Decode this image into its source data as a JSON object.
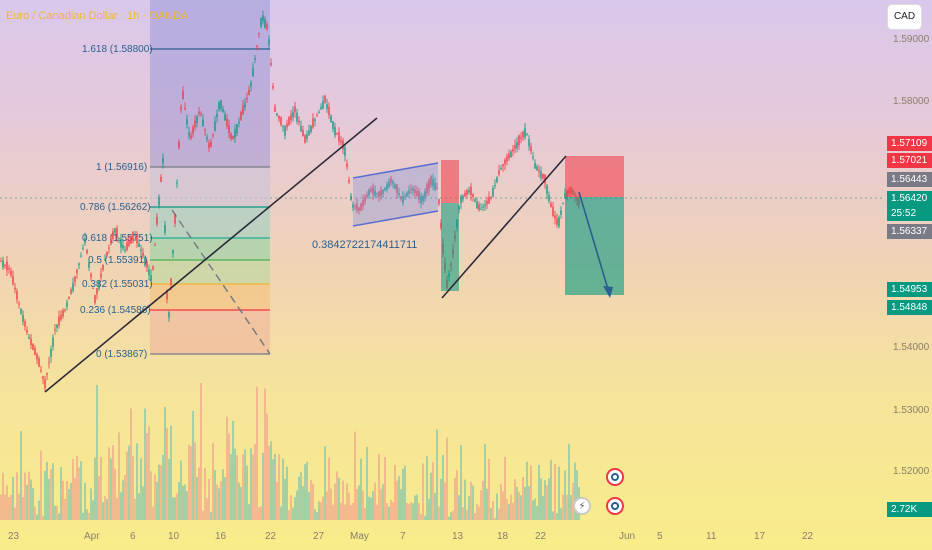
{
  "header": {
    "title": "Euro / Canadian Dollar · 1h · OANDA",
    "currency": "CAD"
  },
  "price_axis": {
    "ticks": [
      "1.59000",
      "1.58000",
      "1.54000",
      "1.53000",
      "1.52000"
    ],
    "tags": [
      {
        "label": "1.57109",
        "color": "#f23645"
      },
      {
        "label": "1.57021",
        "color": "#f23645"
      },
      {
        "label": "1.56443",
        "color": "#787b86"
      },
      {
        "label": "1.56420",
        "color": "#089981"
      },
      {
        "label": "25:52",
        "color": "#089981"
      },
      {
        "label": "1.56337",
        "color": "#787b86"
      },
      {
        "label": "1.54953",
        "color": "#089981"
      },
      {
        "label": "1.54848",
        "color": "#089981"
      },
      {
        "label": "2.72K",
        "color": "#089981"
      }
    ]
  },
  "time_axis": {
    "labels": [
      "23",
      "Apr",
      "6",
      "10",
      "16",
      "22",
      "27",
      "May",
      "7",
      "13",
      "18",
      "22",
      "Jun",
      "5",
      "11",
      "17",
      "22"
    ]
  },
  "fibonacci": {
    "levels": [
      "1.618 (1.58800)",
      "1 (1.56916)",
      "0.786 (1.56262)",
      "0.618 (1.55751)",
      "0.5 (1.55391)",
      "0.382 (1.55031)",
      "0.236 (1.54586)",
      "0 (1.53867)"
    ]
  },
  "annotations": {
    "channel_label": "0.3842722174411711"
  },
  "toolbar": {
    "tool1_icon": "target-icon",
    "tool2_icon": "lightning-icon",
    "tool2_glyph": "⚡"
  },
  "colors": {
    "title": "#f2b437",
    "up": "#089981",
    "down": "#f23645",
    "fib_line": "#2a5f8f"
  }
}
